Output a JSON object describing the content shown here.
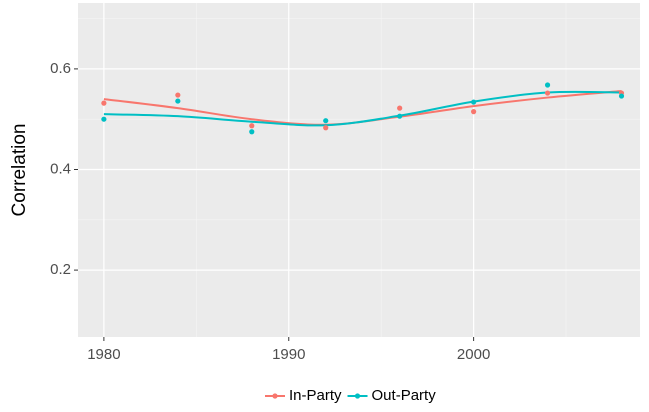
{
  "chart_data": {
    "type": "scatter-smooth",
    "y_label": "Correlation",
    "x": [
      1980,
      1984,
      1988,
      1992,
      1996,
      2000,
      2004,
      2008
    ],
    "series": [
      {
        "name": "In-Party",
        "color": "#f8766d",
        "values": [
          0.532,
          0.548,
          0.487,
          0.483,
          0.522,
          0.515,
          0.552,
          0.552
        ],
        "smooth": [
          0.54,
          0.522,
          0.5,
          0.489,
          0.505,
          0.526,
          0.543,
          0.556
        ]
      },
      {
        "name": "Out-Party",
        "color": "#00bfc4",
        "values": [
          0.5,
          0.536,
          0.475,
          0.497,
          0.506,
          0.534,
          0.568,
          0.546
        ],
        "smooth": [
          0.51,
          0.506,
          0.495,
          0.488,
          0.507,
          0.535,
          0.553,
          0.553
        ]
      }
    ],
    "xlim": [
      1978.6,
      2009.0
    ],
    "ylim": [
      0.067,
      0.731
    ],
    "xticks": [
      1980,
      1990,
      2000
    ],
    "yticks": [
      0.2,
      0.4,
      0.6
    ],
    "x_minor": [
      1985,
      1995,
      2005
    ],
    "y_minor": [
      0.3,
      0.5,
      0.7
    ],
    "grid": true,
    "legend": "bottom"
  }
}
